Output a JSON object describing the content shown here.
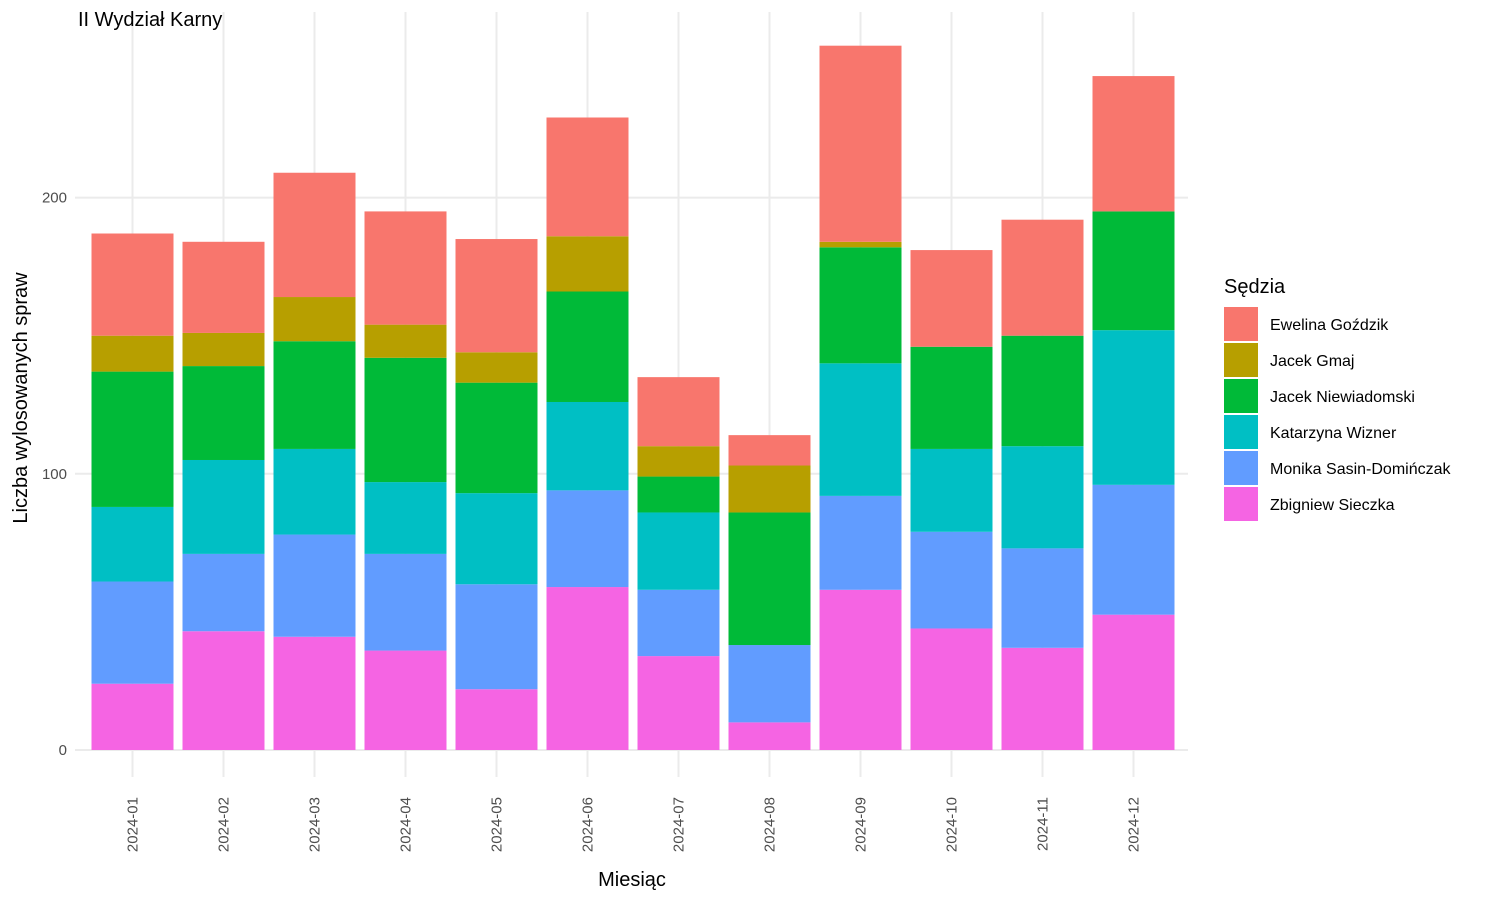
{
  "chart_data": {
    "type": "bar",
    "stacked": true,
    "title": "II Wydział Karny",
    "xlabel": "Miesiąc",
    "ylabel": "Liczba wylosowanych spraw",
    "ylim": [
      0,
      260
    ],
    "yticks": [
      0,
      100,
      200
    ],
    "grid": true,
    "legend_position": "right",
    "legend_title": "Sędzia",
    "categories": [
      "2024-01",
      "2024-02",
      "2024-03",
      "2024-04",
      "2024-05",
      "2024-06",
      "2024-07",
      "2024-08",
      "2024-09",
      "2024-10",
      "2024-11",
      "2024-12"
    ],
    "series": [
      {
        "name": "Zbigniew Sieczka",
        "color": "#F564E3",
        "values": [
          24,
          43,
          41,
          36,
          22,
          59,
          34,
          10,
          58,
          44,
          37,
          49
        ]
      },
      {
        "name": "Monika Sasin-Domińczak",
        "color": "#619CFF",
        "values": [
          37,
          28,
          37,
          35,
          38,
          35,
          24,
          28,
          34,
          35,
          36,
          47
        ]
      },
      {
        "name": "Katarzyna Wizner",
        "color": "#00BFC4",
        "values": [
          27,
          34,
          31,
          26,
          33,
          32,
          28,
          0,
          48,
          30,
          37,
          56
        ]
      },
      {
        "name": "Jacek Niewiadomski",
        "color": "#00BA38",
        "values": [
          49,
          34,
          39,
          45,
          40,
          40,
          13,
          48,
          42,
          37,
          40,
          43
        ]
      },
      {
        "name": "Jacek Gmaj",
        "color": "#B79F00",
        "values": [
          13,
          12,
          16,
          12,
          11,
          20,
          11,
          17,
          2,
          0,
          0,
          0
        ]
      },
      {
        "name": "Ewelina Goździk",
        "color": "#F8766D",
        "values": [
          37,
          33,
          45,
          41,
          41,
          43,
          25,
          11,
          71,
          35,
          42,
          49
        ]
      }
    ],
    "legend_order": [
      "Ewelina Goździk",
      "Jacek Gmaj",
      "Jacek Niewiadomski",
      "Katarzyna Wizner",
      "Monika Sasin-Domińczak",
      "Zbigniew Sieczka"
    ]
  }
}
